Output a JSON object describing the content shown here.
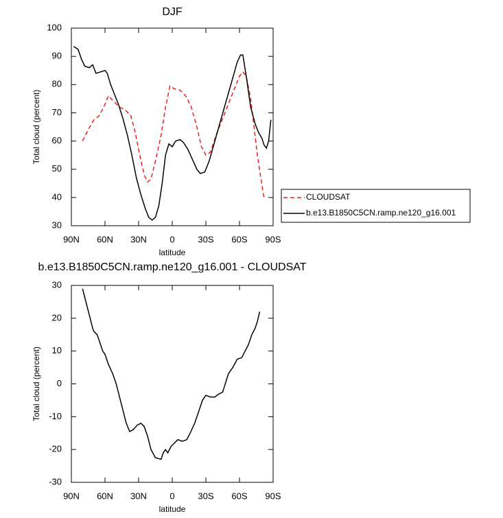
{
  "chart_data": [
    {
      "type": "line",
      "title": "DJF",
      "xlabel": "latitude",
      "ylabel": "Total cloud (percent)",
      "xlim": [
        90,
        -90
      ],
      "ylim": [
        30,
        100
      ],
      "xticks": [
        {
          "value": 90,
          "label": "90N"
        },
        {
          "value": 60,
          "label": "60N"
        },
        {
          "value": 30,
          "label": "30N"
        },
        0,
        {
          "value": -30,
          "label": "30S"
        },
        {
          "value": -60,
          "label": "60S"
        },
        {
          "value": -90,
          "label": "90S"
        }
      ],
      "yticks": [
        30,
        40,
        50,
        60,
        70,
        80,
        90,
        100
      ],
      "legend": "outside-right",
      "series": [
        {
          "name": "CLOUDSAT",
          "color": "#e8201c",
          "line_style": "dashed",
          "x": [
            80,
            75,
            70,
            65,
            60,
            57,
            52,
            47,
            42,
            37,
            33,
            29,
            25,
            22,
            19,
            15,
            10,
            6,
            2,
            -2,
            -7,
            -12,
            -17,
            -22,
            -26,
            -30,
            -34,
            -40,
            -45,
            -50,
            -55,
            -60,
            -63,
            -66,
            -70,
            -73,
            -76,
            -79,
            -82
          ],
          "values": [
            60,
            64,
            67.5,
            69,
            73,
            76,
            74,
            72,
            71,
            69,
            63,
            55,
            48,
            45.5,
            46.5,
            53,
            62,
            72,
            79.5,
            78.5,
            78,
            76,
            72,
            65,
            58,
            55,
            56,
            63,
            68,
            73,
            78,
            83,
            84.5,
            83,
            75,
            65,
            55,
            47,
            39.5
          ]
        },
        {
          "name": "b.e13.B1850C5CN.ramp.ne120_g16.001",
          "color": "#000000",
          "line_style": "solid",
          "x": [
            88,
            84,
            81,
            78,
            74,
            71,
            68,
            64,
            60,
            58,
            55,
            52,
            48,
            44,
            40,
            36,
            32,
            28,
            24,
            21,
            18,
            15,
            12,
            9,
            6,
            3,
            0,
            -3,
            -7,
            -10,
            -14,
            -18,
            -22,
            -25,
            -29,
            -33,
            -38,
            -43,
            -48,
            -53,
            -58,
            -61,
            -63,
            -66,
            -70,
            -74,
            -77,
            -80,
            -82,
            -84,
            -86,
            -88
          ],
          "values": [
            93.5,
            92.5,
            89,
            86.5,
            86,
            87,
            84,
            84.5,
            85,
            84,
            80,
            77,
            73,
            68,
            62,
            55,
            47,
            41,
            36,
            33,
            32,
            33,
            37,
            45,
            55,
            59,
            58,
            60,
            60.5,
            59.5,
            57,
            53.5,
            50,
            48.5,
            49,
            53,
            60,
            67,
            74,
            81,
            88,
            90.5,
            90.5,
            83,
            72,
            66,
            63,
            61,
            58.5,
            57.5,
            60,
            67.5
          ]
        }
      ]
    },
    {
      "type": "line",
      "title": "b.e13.B1850C5CN.ramp.ne120_g16.001 - CLOUDSAT",
      "xlabel": "latitude",
      "ylabel": "Total cloud (percent)",
      "xlim": [
        90,
        -90
      ],
      "ylim": [
        -30,
        30
      ],
      "xticks": [
        {
          "value": 90,
          "label": "90N"
        },
        {
          "value": 60,
          "label": "60N"
        },
        {
          "value": 30,
          "label": "30N"
        },
        0,
        {
          "value": -30,
          "label": "30S"
        },
        {
          "value": -60,
          "label": "60S"
        },
        {
          "value": -90,
          "label": "90S"
        }
      ],
      "yticks": [
        -30,
        -20,
        -10,
        0,
        10,
        20,
        30
      ],
      "series": [
        {
          "color": "#000000",
          "line_style": "solid",
          "x": [
            80,
            77,
            74,
            71,
            70,
            67,
            64,
            62,
            60,
            57,
            53,
            50,
            47,
            44,
            41,
            38,
            35,
            31,
            28,
            25,
            22,
            19,
            15,
            10,
            8,
            6,
            4,
            1,
            -2,
            -5,
            -9,
            -13,
            -16,
            -20,
            -24,
            -27,
            -30,
            -34,
            -38,
            -42,
            -45,
            -50,
            -54,
            -58,
            -62,
            -65,
            -68,
            -71,
            -74,
            -76,
            -78
          ],
          "values": [
            29,
            25,
            21,
            17,
            16,
            15,
            12,
            10,
            9,
            6,
            3,
            0,
            -4,
            -8,
            -12,
            -14.5,
            -14,
            -12.5,
            -12,
            -13,
            -16,
            -20,
            -22.5,
            -23,
            -21,
            -20,
            -21,
            -19,
            -18,
            -17,
            -17.5,
            -17,
            -15,
            -12,
            -8,
            -5,
            -3.5,
            -4,
            -4,
            -3,
            -2.5,
            3,
            5,
            7.5,
            8,
            10,
            12,
            15,
            17,
            19,
            22
          ]
        }
      ]
    }
  ]
}
